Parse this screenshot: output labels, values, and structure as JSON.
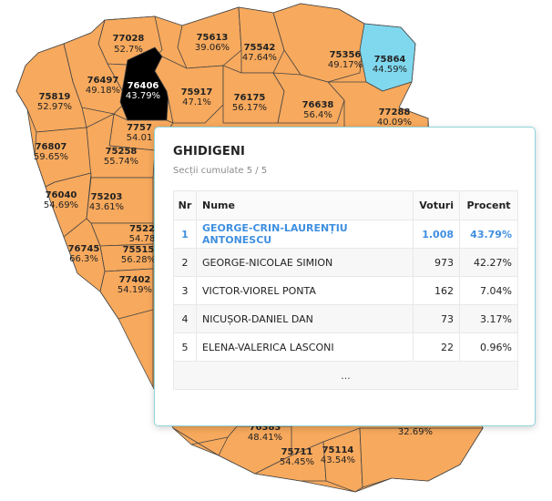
{
  "colors": {
    "region_fill": "#f7a95d",
    "selected_fill": "#000000",
    "highlight_fill": "#7fd8ee",
    "winner_text": "#3f8fe0"
  },
  "map": {
    "regions": [
      {
        "code": "77028",
        "pct": "52.7%"
      },
      {
        "code": "75613",
        "pct": "39.06%"
      },
      {
        "code": "75542",
        "pct": "47.64%"
      },
      {
        "code": "75356",
        "pct": "49.17%"
      },
      {
        "code": "75864",
        "pct": "44.59%"
      },
      {
        "code": "76497",
        "pct": "49.18%"
      },
      {
        "code": "76406",
        "pct": "43.79%"
      },
      {
        "code": "75917",
        "pct": "47.1%"
      },
      {
        "code": "76175",
        "pct": "56.17%"
      },
      {
        "code": "76638",
        "pct": "56.4%"
      },
      {
        "code": "77288",
        "pct": "40.09%"
      },
      {
        "code": "75819",
        "pct": "52.97%"
      },
      {
        "code": "7757",
        "pct": "54.01"
      },
      {
        "code": "76807",
        "pct": "59.65%"
      },
      {
        "code": "75258",
        "pct": "55.74%"
      },
      {
        "code": "76040",
        "pct": "54.69%"
      },
      {
        "code": "75203",
        "pct": "43.61%"
      },
      {
        "code": "7522",
        "pct": "54.78"
      },
      {
        "code": "75515",
        "pct": "56.28%"
      },
      {
        "code": "76745",
        "pct": "66.3%"
      },
      {
        "code": "77402",
        "pct": "54.19%"
      },
      {
        "code": "76383",
        "pct": "48.41%"
      },
      {
        "code": "75711",
        "pct": "54.45%"
      },
      {
        "code": "75114",
        "pct": "43.54%"
      },
      {
        "code": "",
        "pct": "32.69%"
      }
    ]
  },
  "popup": {
    "title": "GHIDIGENI",
    "subtitle_label": "Secții cumulate",
    "subtitle_value": "5 / 5",
    "columns": {
      "nr": "Nr",
      "name": "Nume",
      "votes": "Voturi",
      "percent": "Procent"
    },
    "rows": [
      {
        "nr": "1",
        "name": "GEORGE-CRIN-LAURENȚIU ANTONESCU",
        "votes": "1.008",
        "percent": "43.79%"
      },
      {
        "nr": "2",
        "name": "GEORGE-NICOLAE SIMION",
        "votes": "973",
        "percent": "42.27%"
      },
      {
        "nr": "3",
        "name": "VICTOR-VIOREL PONTA",
        "votes": "162",
        "percent": "7.04%"
      },
      {
        "nr": "4",
        "name": "NICUȘOR-DANIEL DAN",
        "votes": "73",
        "percent": "3.17%"
      },
      {
        "nr": "5",
        "name": "ELENA-VALERICA LASCONI",
        "votes": "22",
        "percent": "0.96%"
      }
    ],
    "more_label": "..."
  }
}
